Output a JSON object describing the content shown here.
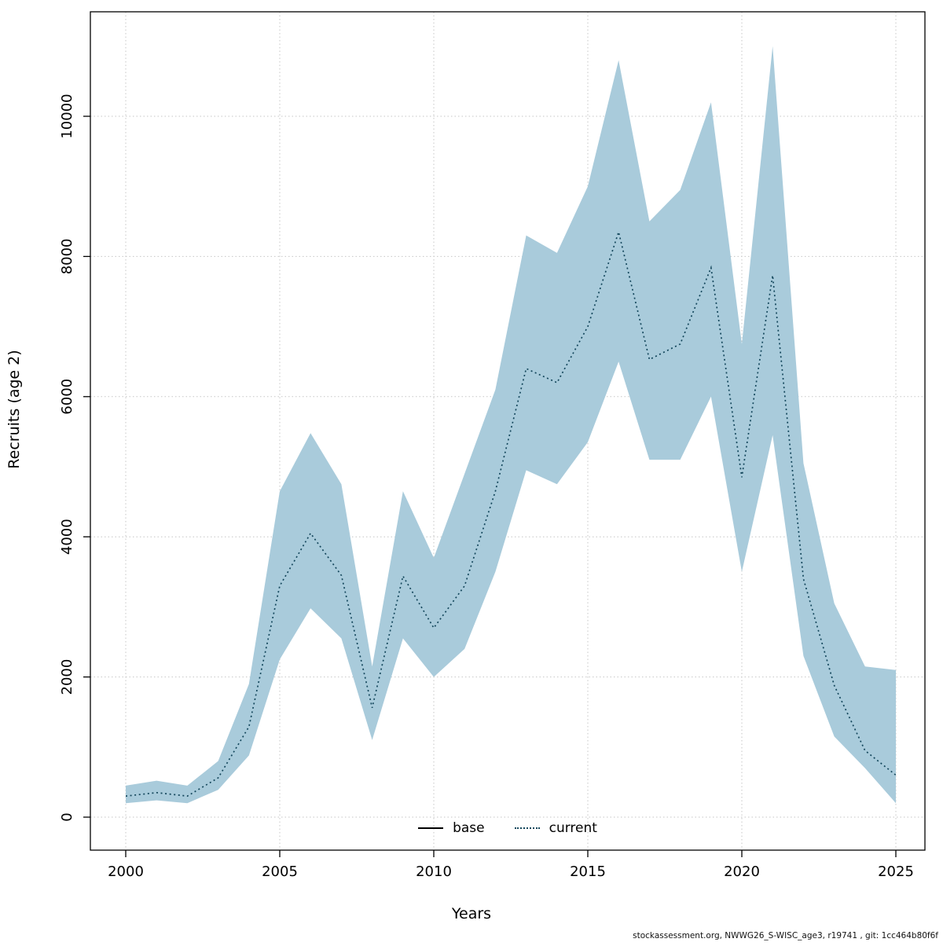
{
  "axes": {
    "x_label": "Years",
    "y_label": "Recruits (age 2)"
  },
  "legend": {
    "base_label": "base",
    "current_label": "current"
  },
  "footer": "stockassessment.org, NWWG26_S-WISC_age3, r19741 , git: 1cc464b80f6f",
  "colors": {
    "band": "#a9cbdb",
    "current_line": "#14475c",
    "base_line": "#000000",
    "grid": "#c6c6c6",
    "axis": "#000000",
    "background": "#ffffff"
  },
  "chart_data": {
    "type": "line",
    "title": "",
    "xlabel": "Years",
    "ylabel": "Recruits (age 2)",
    "xlim": [
      1998.85,
      2025.95
    ],
    "ylim": [
      -470,
      11490
    ],
    "x_ticks": [
      2000,
      2005,
      2010,
      2015,
      2020,
      2025
    ],
    "y_ticks": [
      0,
      2000,
      4000,
      6000,
      8000,
      10000
    ],
    "grid": true,
    "grid_style": "dotted",
    "legend_position": "bottom-center-inside",
    "legend_entries": [
      "base",
      "current"
    ],
    "x": [
      2000,
      2001,
      2002,
      2003,
      2004,
      2005,
      2006,
      2007,
      2008,
      2009,
      2010,
      2011,
      2012,
      2013,
      2014,
      2015,
      2016,
      2017,
      2018,
      2019,
      2020,
      2021,
      2022,
      2023,
      2024,
      2025
    ],
    "series": [
      {
        "name": "current",
        "style": "dotted",
        "color": "#14475c",
        "values": [
          300,
          350,
          300,
          560,
          1290,
          3300,
          4050,
          3450,
          1560,
          3440,
          2700,
          3300,
          4650,
          6400,
          6200,
          7000,
          8350,
          6530,
          6750,
          7840,
          4850,
          7730,
          3400,
          1880,
          950,
          600
        ]
      }
    ],
    "band": {
      "name": "current-confidence-interval",
      "fill": "#a9cbdb",
      "upper": [
        450,
        520,
        450,
        800,
        1900,
        4650,
        5480,
        4750,
        2150,
        4650,
        3700,
        4900,
        6100,
        8300,
        8050,
        9000,
        10800,
        8500,
        8950,
        10200,
        6750,
        11000,
        5050,
        3050,
        2150,
        2100
      ],
      "lower": [
        200,
        240,
        200,
        390,
        880,
        2250,
        2980,
        2550,
        1100,
        2550,
        2000,
        2400,
        3500,
        4950,
        4750,
        5350,
        6500,
        5100,
        5100,
        6000,
        3500,
        5450,
        2300,
        1150,
        700,
        200
      ]
    }
  }
}
